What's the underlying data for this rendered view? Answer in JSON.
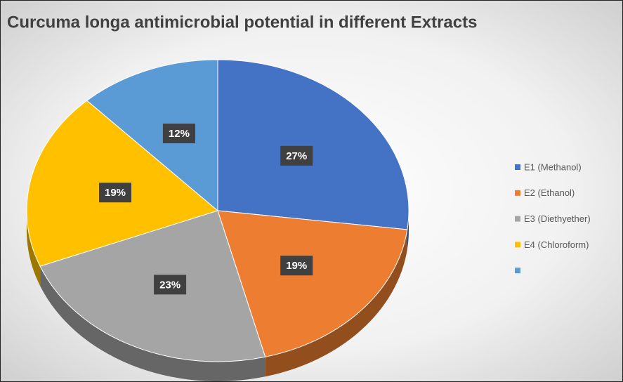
{
  "chart_data": {
    "type": "pie",
    "title": "Curcuma longa antimicrobial potential in different Extracts",
    "categories": [
      "E1 (Methanol)",
      "E2 (Ethanol)",
      "E3 (Diethyether)",
      "E4 (Chloroform)",
      null
    ],
    "values": [
      27,
      19,
      23,
      19,
      12
    ],
    "value_labels": [
      "27%",
      "19%",
      "23%",
      "19%",
      "12%"
    ],
    "colors": [
      "#4472c4",
      "#ed7d31",
      "#a5a5a5",
      "#ffc000",
      "#5b9bd5"
    ],
    "legend": "right"
  }
}
